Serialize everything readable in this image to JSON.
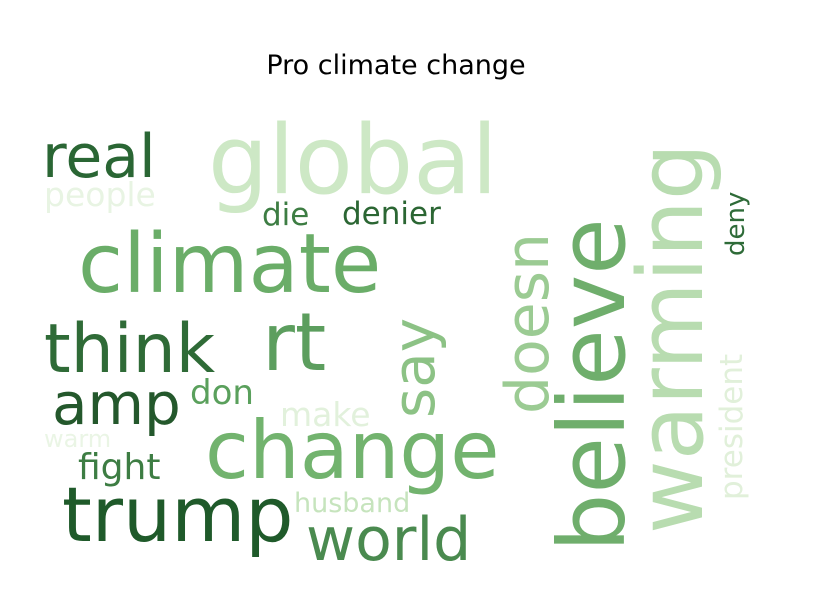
{
  "title": "Pro climate change",
  "palette": {
    "darkest": "#1f5a2a",
    "dark": "#2e6b38",
    "medium_dark": "#4a8c52",
    "medium": "#6fae6c",
    "light_medium": "#8dc287",
    "light": "#a9d5a1",
    "very_light": "#c7e6bf",
    "palest": "#e6f4e0"
  },
  "words": [
    {
      "text": "global",
      "weight": 0.62,
      "color": "#cde8c5"
    },
    {
      "text": "climate",
      "weight": 0.72,
      "color": "#6aad68"
    },
    {
      "text": "change",
      "weight": 0.7,
      "color": "#72b36e"
    },
    {
      "text": "believe",
      "weight": 0.75,
      "color": "#6fae6c"
    },
    {
      "text": "warming",
      "weight": 0.74,
      "color": "#b8dcb0"
    },
    {
      "text": "trump",
      "weight": 0.62,
      "color": "#1f5a2a"
    },
    {
      "text": "think",
      "weight": 0.55,
      "color": "#2f6b37"
    },
    {
      "text": "rt",
      "weight": 0.55,
      "color": "#5c9e5e"
    },
    {
      "text": "doesn",
      "weight": 0.52,
      "color": "#9bcb93"
    },
    {
      "text": "real",
      "weight": 0.45,
      "color": "#2a6634"
    },
    {
      "text": "amp",
      "weight": 0.45,
      "color": "#24582c"
    },
    {
      "text": "world",
      "weight": 0.48,
      "color": "#4a8a4f"
    },
    {
      "text": "say",
      "weight": 0.48,
      "color": "#8cc285"
    },
    {
      "text": "denier",
      "weight": 0.28,
      "color": "#2b6633"
    },
    {
      "text": "die",
      "weight": 0.28,
      "color": "#3d7d43"
    },
    {
      "text": "fight",
      "weight": 0.28,
      "color": "#3d7d43"
    },
    {
      "text": "don",
      "weight": 0.28,
      "color": "#5aa05c"
    },
    {
      "text": "people",
      "weight": 0.28,
      "color": "#e8f4e3"
    },
    {
      "text": "make",
      "weight": 0.28,
      "color": "#e2f1dc"
    },
    {
      "text": "warm",
      "weight": 0.18,
      "color": "#eaf5e5"
    },
    {
      "text": "husband",
      "weight": 0.22,
      "color": "#c6e4bd"
    },
    {
      "text": "president",
      "weight": 0.22,
      "color": "#e1f0da"
    },
    {
      "text": "deny",
      "weight": 0.18,
      "color": "#2e6b38"
    }
  ]
}
